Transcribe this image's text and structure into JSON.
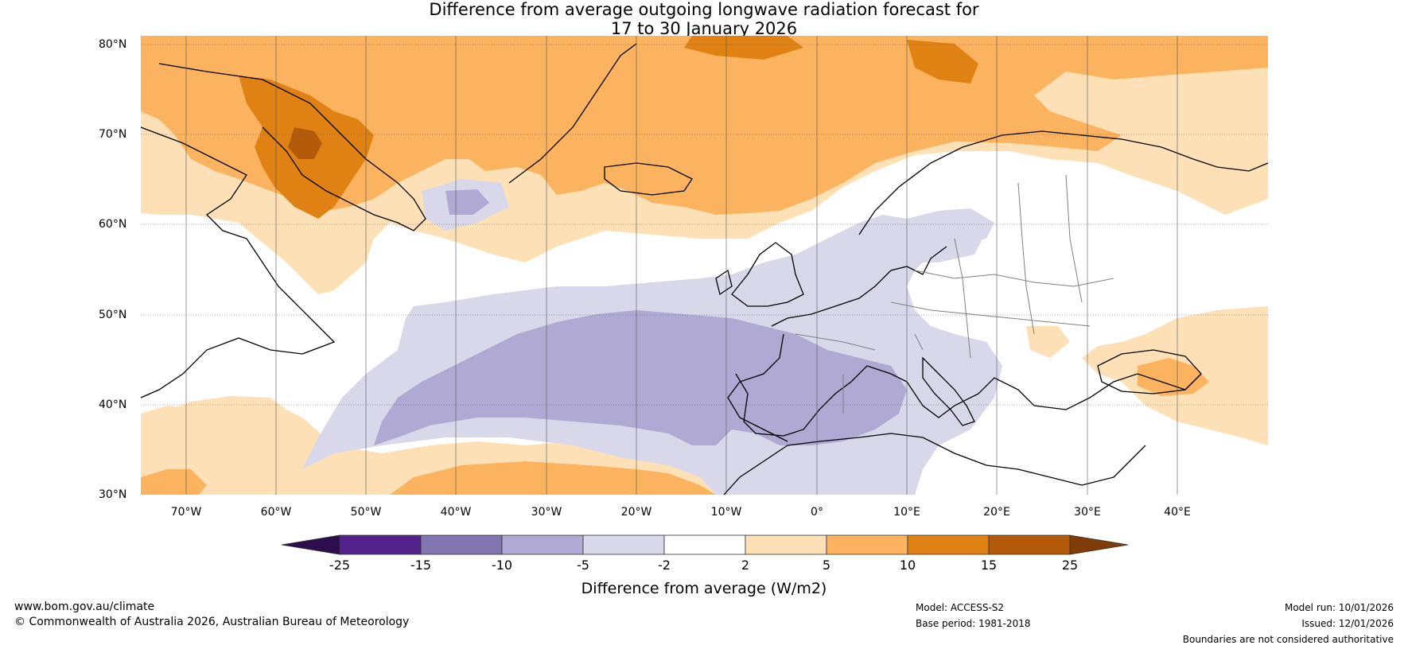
{
  "title": {
    "line1": "Difference from average outgoing longwave radiation forecast for",
    "line2": "17 to 30 January 2026"
  },
  "axes": {
    "lat_labels": [
      "80°N",
      "70°N",
      "60°N",
      "50°N",
      "40°N",
      "30°N"
    ],
    "lon_labels": [
      "70°W",
      "60°W",
      "50°W",
      "40°W",
      "30°W",
      "20°W",
      "10°W",
      "0°",
      "10°E",
      "20°E",
      "30°E",
      "40°E"
    ],
    "lat_range": [
      30,
      80
    ],
    "lon_range": [
      -75,
      50
    ]
  },
  "colorbar": {
    "title": "Difference from average (W/m2)",
    "tick_labels": [
      "-25",
      "-15",
      "-10",
      "-5",
      "-2",
      "2",
      "5",
      "10",
      "15",
      "25"
    ],
    "colors": {
      "below_min": "#2d0d4e",
      "b1": "#52228a",
      "b2": "#8275b0",
      "b3": "#b0a9d3",
      "b4": "#d8d8ea",
      "b5": "#ffffff",
      "b6": "#fee0b6",
      "b7": "#fbb35f",
      "b8": "#e08213",
      "b9": "#b35a0b",
      "above_max": "#7f3b08"
    }
  },
  "footer": {
    "website": "www.bom.gov.au/climate",
    "copyright": "© Commonwealth of Australia 2026, Australian Bureau of Meteorology",
    "model": "Model: ACCESS-S2",
    "base_period": "Base period: 1981-2018",
    "model_run": "Model run: 10/01/2026",
    "issued": "Issued: 12/01/2026",
    "disclaimer": "Boundaries are not considered authoritative"
  },
  "map_colors": {
    "ocean_white": "#ffffff",
    "light_orange": "#fee0b6",
    "mid_orange": "#fbb35f",
    "dark_orange": "#e08213",
    "darkest_orange": "#b35a0b",
    "light_purple": "#d8d8ea",
    "mid_purple": "#b0a9d3",
    "coast": "#000000",
    "border": "#808080",
    "grid": "#555555"
  }
}
